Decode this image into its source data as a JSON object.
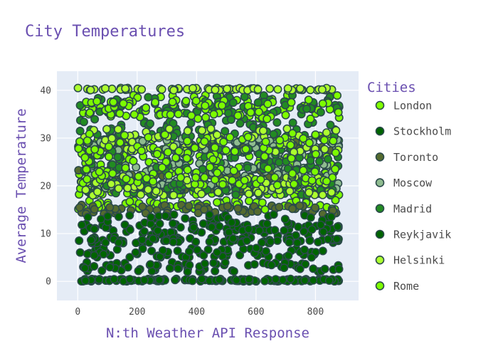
{
  "chart_data": {
    "type": "scatter",
    "title": "City Temperatures",
    "xlabel": "N:th Weather API Response",
    "ylabel": "Average Temperature",
    "xlim": [
      -70,
      945
    ],
    "ylim": [
      -4,
      44
    ],
    "xticks": [
      0,
      200,
      400,
      600,
      800
    ],
    "yticks": [
      0,
      10,
      20,
      30,
      40
    ],
    "grid": true,
    "legend": {
      "title": "Cities",
      "position": "right"
    },
    "marker_outline_color": "#2b4a4a",
    "plot_background": "#e5ecf6",
    "series": [
      {
        "name": "London",
        "color": "#7fff00",
        "bands": [
          [
            34.5,
            39
          ],
          [
            28.5,
            30.5
          ],
          [
            22,
            27
          ],
          [
            18,
            20
          ],
          [
            15,
            17
          ]
        ]
      },
      {
        "name": "Stockholm",
        "color": "#006400",
        "bands": [
          [
            9,
            12
          ],
          [
            5,
            7
          ],
          [
            2,
            4
          ],
          [
            0,
            0.5
          ]
        ]
      },
      {
        "name": "Toronto",
        "color": "#556b2f",
        "bands": [
          [
            27,
            30
          ],
          [
            18,
            24
          ],
          [
            14,
            16
          ]
        ]
      },
      {
        "name": "Moscow",
        "color": "#8fbc8f",
        "bands": [
          [
            26,
            30
          ],
          [
            22,
            25
          ],
          [
            19,
            21
          ]
        ]
      },
      {
        "name": "Madrid",
        "color": "#228b22",
        "bands": [
          [
            35,
            39
          ],
          [
            30,
            34
          ],
          [
            23,
            28
          ],
          [
            18,
            21
          ]
        ]
      },
      {
        "name": "Reykjavik",
        "color": "#006400",
        "bands": [
          [
            10,
            14
          ],
          [
            8,
            9
          ],
          [
            0,
            0.5
          ]
        ]
      },
      {
        "name": "Helsinki",
        "color": "#adff2f",
        "bands": [
          [
            40,
            40.5
          ],
          [
            27,
            32
          ],
          [
            18,
            22
          ]
        ]
      },
      {
        "name": "Rome",
        "color": "#7cfc00",
        "bands": [
          [
            34,
            38
          ],
          [
            25,
            31
          ],
          [
            20,
            24
          ]
        ]
      }
    ]
  }
}
